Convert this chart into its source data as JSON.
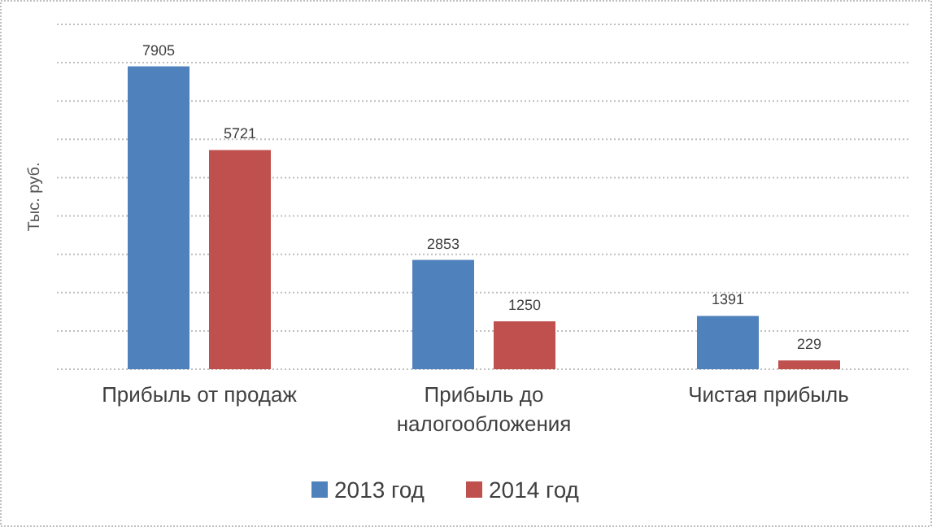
{
  "chart_data": {
    "type": "bar",
    "ylabel": "Тыс. руб.",
    "categories": [
      "Прибыль от продаж",
      "Прибыль до налогообложения",
      "Чистая прибыль"
    ],
    "series": [
      {
        "name": "2013 год",
        "color": "#4f81bd",
        "values": [
          7905,
          2853,
          1391
        ]
      },
      {
        "name": "2014 год",
        "color": "#c0504d",
        "values": [
          5721,
          1250,
          229
        ]
      }
    ],
    "ylim": [
      0,
      9000
    ],
    "yticks": [
      {
        "value": 0,
        "label": null
      },
      {
        "value": 1000,
        "label": null
      },
      {
        "value": 2000,
        "label": null
      },
      {
        "value": 3000,
        "label": null
      },
      {
        "value": 4000,
        "label": null
      },
      {
        "value": 5000,
        "label": null
      },
      {
        "value": 6000,
        "label": null
      },
      {
        "value": 7000,
        "label": null
      },
      {
        "value": 8000,
        "label": null
      },
      {
        "value": 9000,
        "label": null
      }
    ],
    "tick_labels": "x",
    "grid": "y",
    "data_labels": true,
    "legend": "bottom"
  }
}
